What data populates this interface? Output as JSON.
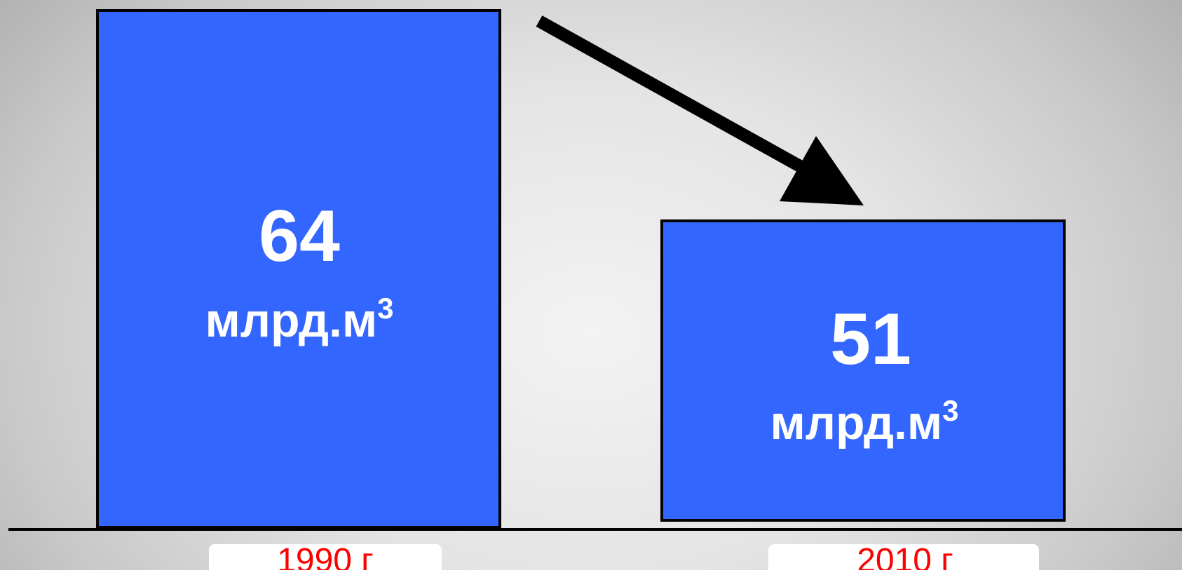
{
  "colors": {
    "bar_fill": "#3366ff",
    "bar_stroke": "#000000",
    "value_text": "#ffffff",
    "category_text": "#ff0000",
    "arrow": "#000000",
    "baseline": "#000000"
  },
  "chart_data": {
    "type": "bar",
    "categories": [
      "1990 г",
      "2010 г"
    ],
    "values": [
      64,
      51
    ],
    "value_labels": [
      "64",
      "51"
    ],
    "unit_text": "млрд.м",
    "unit_superscript": "3",
    "title": "",
    "xlabel": "",
    "ylabel": "",
    "ylim": [
      0,
      64
    ],
    "grid": false,
    "annotations": [
      {
        "type": "arrow",
        "direction": "down-right",
        "from": "1990 г",
        "to": "2010 г"
      }
    ]
  }
}
